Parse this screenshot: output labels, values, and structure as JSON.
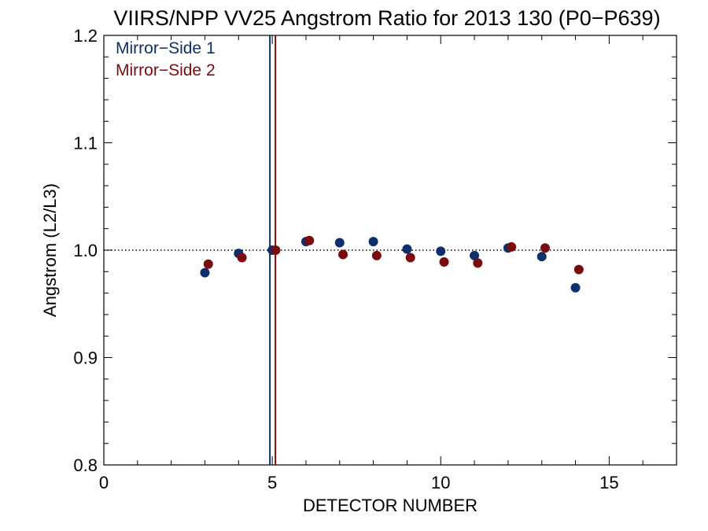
{
  "chart_data": {
    "type": "scatter",
    "title": "VIIRS/NPP VV25 Angstrom Ratio for 2013 130 (P0−P639)",
    "xlabel": "DETECTOR NUMBER",
    "ylabel": "Angstrom (L2/L3)",
    "xlim": [
      0,
      17
    ],
    "ylim": [
      0.8,
      1.2
    ],
    "x_ticks": [
      0,
      5,
      10,
      15
    ],
    "x_tick_labels": [
      "0",
      "5",
      "10",
      "15"
    ],
    "y_ticks": [
      0.8,
      0.9,
      1.0,
      1.1,
      1.2
    ],
    "y_tick_labels": [
      "0.8",
      "0.9",
      "1.0",
      "1.1",
      "1.2"
    ],
    "reference_line": {
      "y": 1.0,
      "style": "dotted"
    },
    "legend_position": "top-left",
    "series": [
      {
        "name": "Mirror−Side 1",
        "color": "#0d2f6b",
        "vertical_line_x": 5,
        "x": [
          3,
          4,
          5,
          6,
          7,
          8,
          9,
          10,
          11,
          12,
          13,
          14
        ],
        "y": [
          0.979,
          0.997,
          1.0,
          1.008,
          1.007,
          1.008,
          1.001,
          0.999,
          0.995,
          1.002,
          0.994,
          0.965
        ]
      },
      {
        "name": "Mirror−Side 2",
        "color": "#7a0c10",
        "vertical_line_x": 5,
        "x": [
          3.1,
          4.1,
          5.1,
          6.1,
          7.1,
          8.1,
          9.1,
          10.1,
          11.1,
          12.1,
          13.1,
          14.1
        ],
        "y": [
          0.987,
          0.993,
          1.0,
          1.009,
          0.996,
          0.995,
          0.993,
          0.989,
          0.988,
          1.003,
          1.002,
          0.982
        ]
      }
    ]
  }
}
